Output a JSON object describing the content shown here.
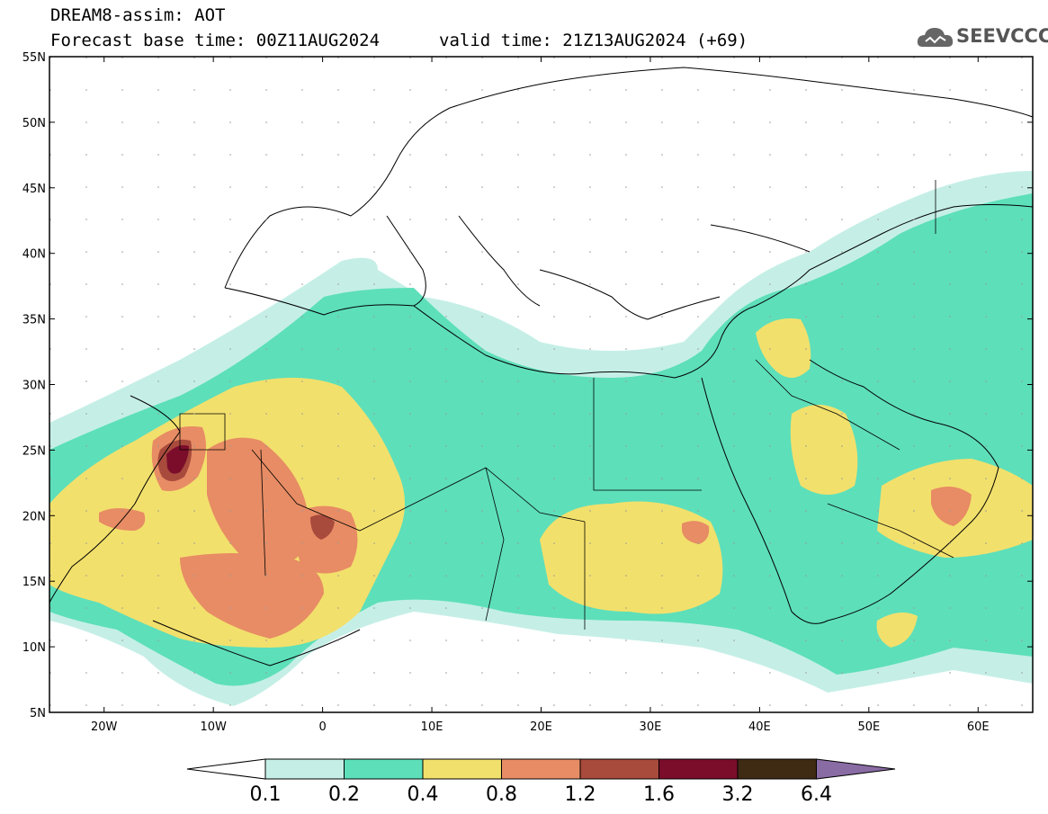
{
  "title": {
    "line1": "DREAM8-assim: AOT",
    "base_time": "Forecast base time: 00Z11AUG2024",
    "valid_time": "valid time: 21Z13AUG2024 (+69)"
  },
  "logo": {
    "text": "SEEVCCC",
    "icon": "cloud-icon"
  },
  "axes": {
    "lat_labels": [
      "55N",
      "50N",
      "45N",
      "40N",
      "35N",
      "30N",
      "25N",
      "20N",
      "15N",
      "10N",
      "5N"
    ],
    "lat_values": [
      55,
      50,
      45,
      40,
      35,
      30,
      25,
      20,
      15,
      10,
      5
    ],
    "lon_labels": [
      "20W",
      "10W",
      "0",
      "10E",
      "20E",
      "30E",
      "40E",
      "50E",
      "60E"
    ],
    "lon_values": [
      -20,
      -10,
      0,
      10,
      20,
      30,
      40,
      50,
      60
    ],
    "lon_range": [
      -25,
      65
    ],
    "lat_range": [
      5,
      55
    ]
  },
  "colorbar": {
    "labels": [
      "0.1",
      "0.2",
      "0.4",
      "0.8",
      "1.2",
      "1.6",
      "3.2",
      "6.4"
    ],
    "colors": [
      "#ffffff",
      "#c5efe6",
      "#5ddfba",
      "#f2e06c",
      "#e78c64",
      "#a84a3c",
      "#7b0d2b",
      "#3f2a14",
      "#8a6ca4"
    ]
  }
}
